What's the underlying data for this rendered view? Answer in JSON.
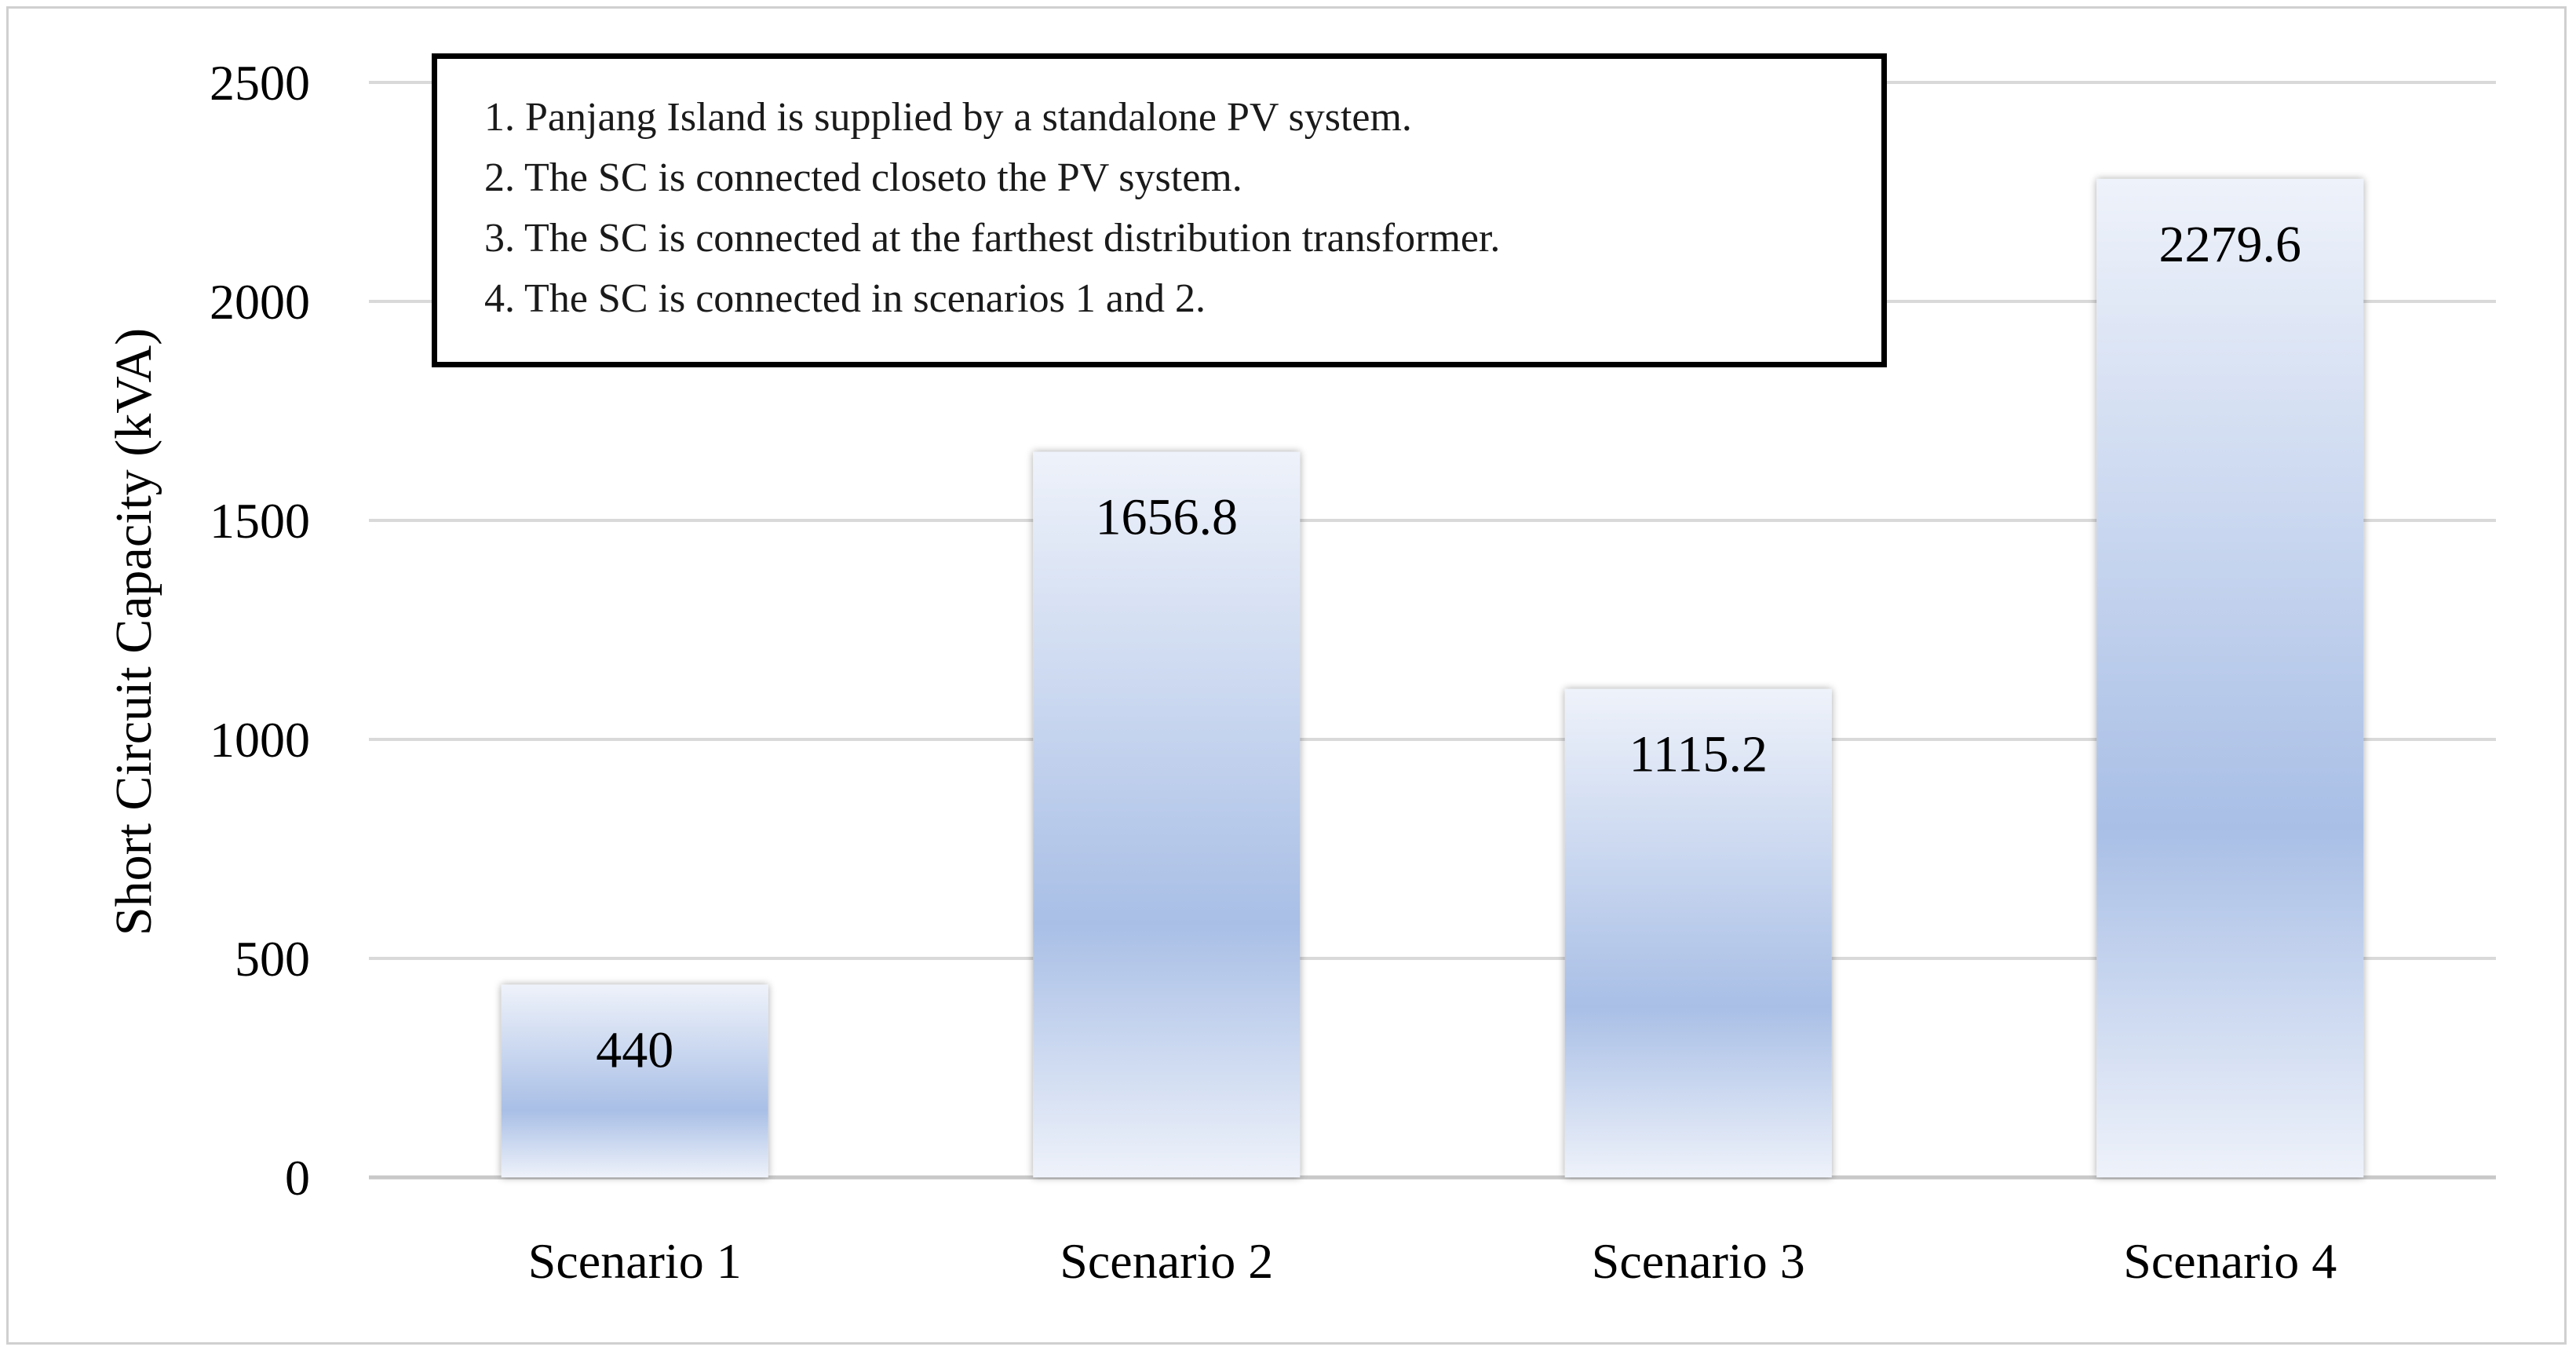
{
  "chart_data": {
    "type": "bar",
    "categories": [
      "Scenario 1",
      "Scenario 2",
      "Scenario 3",
      "Scenario 4"
    ],
    "values": [
      440,
      1656.8,
      1115.2,
      2279.6
    ],
    "data_labels": [
      "440",
      "1656.8",
      "1115.2",
      "2279.6"
    ],
    "title": "",
    "xlabel": "",
    "ylabel": "Short Circuit Capacity (kVA)",
    "ylim": [
      0,
      2500
    ],
    "yticks": [
      0,
      500,
      1000,
      1500,
      2000,
      2500
    ],
    "grid": true,
    "bar_color_top": "#eef2fa",
    "bar_color_bottom": "#a9bfe6",
    "annotations": [
      "1. Panjang Island is supplied by a standalone PV system.",
      "2. The SC is connected closeto the PV system.",
      "3. The SC is connected at the farthest distribution transformer.",
      "4. The SC is connected in scenarios 1 and 2."
    ]
  }
}
